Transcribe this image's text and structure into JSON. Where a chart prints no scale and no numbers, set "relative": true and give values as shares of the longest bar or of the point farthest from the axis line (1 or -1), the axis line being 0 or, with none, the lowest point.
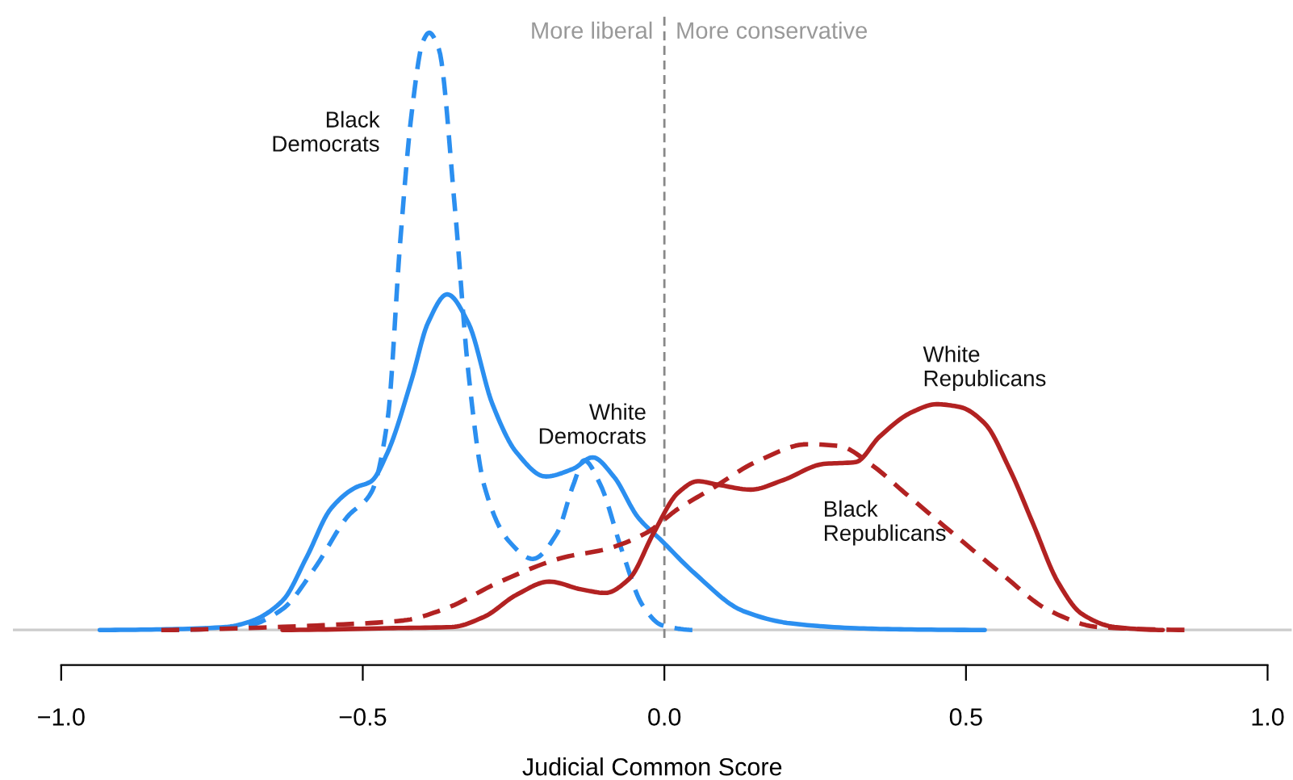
{
  "chart_data": {
    "type": "line",
    "relative": true,
    "xlabel": "Judicial Common Score",
    "xlim": [
      -1.08,
      1.04
    ],
    "xticks": [
      {
        "value": -1,
        "label": "−1.0"
      },
      {
        "value": -0.5,
        "label": "−0.5"
      },
      {
        "value": 0,
        "label": "0.0"
      },
      {
        "value": 0.5,
        "label": "0.5"
      },
      {
        "value": 1,
        "label": "1.0"
      }
    ],
    "tick_labels": "x",
    "ref_lines": [
      {
        "axis": "x",
        "value": 0,
        "color": "#888888",
        "line_style": "dashed"
      }
    ],
    "annotations": [
      "More liberal",
      "More conservative"
    ],
    "series": [
      {
        "name": "White\nDemocrats",
        "color": "#2b8ff0",
        "line_style": "solid",
        "x": [
          -0.936,
          -0.834,
          -0.727,
          -0.687,
          -0.633,
          -0.593,
          -0.553,
          -0.513,
          -0.486,
          -0.459,
          -0.419,
          -0.392,
          -0.36,
          -0.325,
          -0.285,
          -0.245,
          -0.197,
          -0.151,
          -0.119,
          -0.084,
          -0.044,
          -0.004,
          0.05,
          0.13,
          0.21,
          0.317,
          0.398,
          0.531
        ],
        "values": [
          0,
          0.001,
          0.005,
          0.014,
          0.049,
          0.122,
          0.203,
          0.238,
          0.249,
          0.297,
          0.419,
          0.514,
          0.562,
          0.514,
          0.378,
          0.297,
          0.257,
          0.27,
          0.289,
          0.257,
          0.189,
          0.149,
          0.095,
          0.032,
          0.011,
          0.003,
          0.001,
          0
        ]
      },
      {
        "name": "Black\nDemocrats",
        "color": "#2b8ff0",
        "line_style": "dashed",
        "x": [
          -0.834,
          -0.727,
          -0.687,
          -0.633,
          -0.58,
          -0.526,
          -0.486,
          -0.459,
          -0.438,
          -0.419,
          -0.4,
          -0.39,
          -0.374,
          -0.347,
          -0.325,
          -0.299,
          -0.258,
          -0.218,
          -0.178,
          -0.151,
          -0.133,
          -0.106,
          -0.071,
          -0.036,
          -0.004,
          0.05
        ],
        "values": [
          0,
          0.003,
          0.008,
          0.035,
          0.103,
          0.189,
          0.23,
          0.351,
          0.649,
          0.865,
          0.986,
          1,
          0.973,
          0.703,
          0.432,
          0.243,
          0.149,
          0.119,
          0.162,
          0.243,
          0.284,
          0.243,
          0.135,
          0.041,
          0.008,
          0
        ]
      },
      {
        "name": "White\nRepublicans",
        "color": "#b22222",
        "line_style": "solid",
        "x": [
          -0.633,
          -0.459,
          -0.352,
          -0.299,
          -0.245,
          -0.191,
          -0.138,
          -0.098,
          -0.058,
          -0.018,
          0.023,
          0.055,
          0.09,
          0.143,
          0.197,
          0.264,
          0.317,
          0.357,
          0.411,
          0.451,
          0.491,
          0.531,
          0.572,
          0.612,
          0.652,
          0.692,
          0.746,
          0.826
        ],
        "values": [
          0,
          0.003,
          0.005,
          0.022,
          0.059,
          0.081,
          0.068,
          0.062,
          0.086,
          0.162,
          0.23,
          0.249,
          0.243,
          0.235,
          0.251,
          0.278,
          0.281,
          0.324,
          0.365,
          0.378,
          0.373,
          0.346,
          0.27,
          0.176,
          0.081,
          0.027,
          0.005,
          0
        ]
      },
      {
        "name": "Black\nRepublicans",
        "color": "#b22222",
        "line_style": "dashed",
        "x": [
          -0.834,
          -0.7,
          -0.566,
          -0.432,
          -0.365,
          -0.272,
          -0.165,
          -0.098,
          -0.031,
          0.023,
          0.076,
          0.157,
          0.237,
          0.29,
          0.344,
          0.398,
          0.478,
          0.558,
          0.639,
          0.719,
          0.88
        ],
        "values": [
          0,
          0.003,
          0.008,
          0.016,
          0.035,
          0.081,
          0.122,
          0.135,
          0.162,
          0.203,
          0.235,
          0.284,
          0.311,
          0.308,
          0.276,
          0.23,
          0.162,
          0.095,
          0.032,
          0.005,
          0
        ]
      }
    ]
  }
}
